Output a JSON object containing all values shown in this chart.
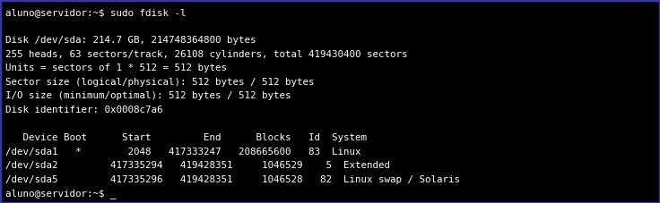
{
  "background_color": "#000000",
  "border_color": "#3333cc",
  "text_color": "#ffffff",
  "font_family": "monospace",
  "font_size": 7.8,
  "figwidth": 7.36,
  "figheight": 2.27,
  "dpi": 100,
  "lines": [
    "aluno@servidor:~$ sudo fdisk -l",
    "",
    "Disk /dev/sda: 214.7 GB, 214748364800 bytes",
    "255 heads, 63 sectors/track, 26108 cylinders, total 419430400 sectors",
    "Units = sectors of 1 * 512 = 512 bytes",
    "Sector size (logical/physical): 512 bytes / 512 bytes",
    "I/O size (minimum/optimal): 512 bytes / 512 bytes",
    "Disk identifier: 0x0008c7a6",
    "",
    "   Device Boot      Start         End      Blocks   Id  System",
    "/dev/sda1   *        2048   417333247   208665600   83  Linux",
    "/dev/sda2         417335294   419428351     1046529    5  Extended",
    "/dev/sda5         417335296   419428351     1046528   82  Linux swap / Solaris",
    "aluno@servidor:~$ _"
  ]
}
